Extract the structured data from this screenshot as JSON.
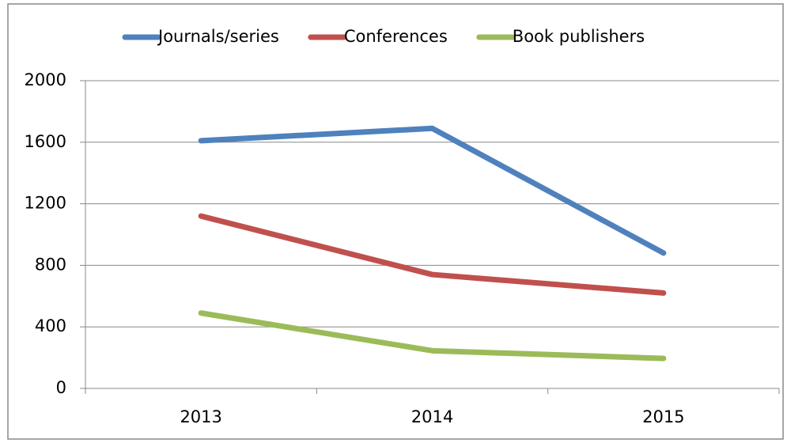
{
  "chart_data": {
    "type": "line",
    "categories": [
      "2013",
      "2014",
      "2015"
    ],
    "series": [
      {
        "name": "Journals/series",
        "color": "#4f81bd",
        "values": [
          1610,
          1690,
          880
        ]
      },
      {
        "name": "Conferences",
        "color": "#c0504d",
        "values": [
          1120,
          740,
          620
        ]
      },
      {
        "name": "Book publishers",
        "color": "#9bbb59",
        "values": [
          490,
          245,
          195
        ]
      }
    ],
    "ylim": [
      0,
      2000
    ],
    "yticks": [
      0,
      400,
      800,
      1200,
      1600,
      2000
    ],
    "grid": true,
    "legend": "top"
  }
}
